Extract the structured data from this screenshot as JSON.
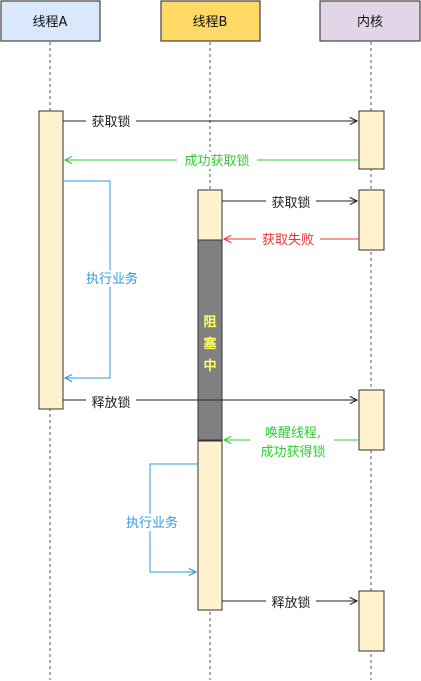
{
  "participants": {
    "thread_a": "线程A",
    "thread_b": "线程B",
    "kernel": "内核"
  },
  "messages": {
    "a_acquire": "获取锁",
    "kernel_grant_a": "成功获取锁",
    "a_execute": "执行业务",
    "b_acquire": "获取锁",
    "kernel_fail_b": "获取失败",
    "b_blocked": "阻塞中",
    "a_release": "释放锁",
    "kernel_wake_b_line1": "唤醒线程,",
    "kernel_wake_b_line2": "成功获得锁",
    "b_execute": "执行业务",
    "b_release": "释放锁"
  },
  "colors": {
    "thread_a_fill": "#dae8fc",
    "thread_b_fill": "#ffd966",
    "kernel_fill": "#e1d5e7",
    "activation_fill": "#fff2cc",
    "blocked_fill": "#808080",
    "blocked_text": "#ffff66",
    "success": "#33cc33",
    "failure": "#ee3333",
    "execution": "#3399dd"
  }
}
